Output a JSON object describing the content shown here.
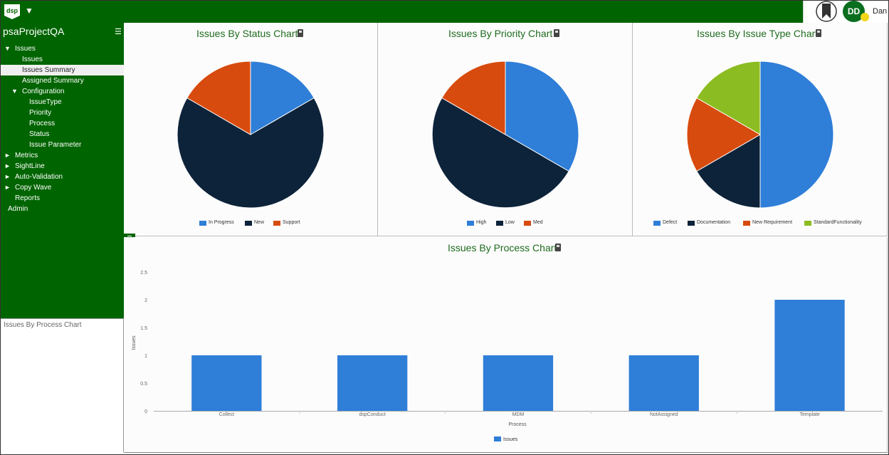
{
  "app": {
    "logo_text": "dsp",
    "user_initials": "DD",
    "user_name": "Dan"
  },
  "sidebar": {
    "project": "psaProjectQA",
    "items": [
      {
        "label": "Issues",
        "arrow": "▼"
      },
      {
        "label": "Issues"
      },
      {
        "label": "Issues Summary"
      },
      {
        "label": "Assigned Summary"
      },
      {
        "label": "Configuration",
        "arrow": "▼"
      },
      {
        "label": "IssueType"
      },
      {
        "label": "Priority"
      },
      {
        "label": "Process"
      },
      {
        "label": "Status"
      },
      {
        "label": "Issue Parameter"
      },
      {
        "label": "Metrics",
        "arrow": "►"
      },
      {
        "label": "SightLine",
        "arrow": "►"
      },
      {
        "label": "Auto-Validation",
        "arrow": "►"
      },
      {
        "label": "Copy Wave",
        "arrow": "►"
      },
      {
        "label": "Reports"
      },
      {
        "label": "Admin"
      }
    ],
    "lower_panel_text": "Issues By Process Chart"
  },
  "colors": {
    "green": "#006400",
    "blue": "#2f7ed8",
    "navy": "#0d233a",
    "orange": "#d84b0e",
    "lime": "#8bbc21"
  },
  "chart_data": [
    {
      "type": "pie",
      "title": "Issues By Status Chart",
      "labels": [
        "In Progress",
        "New",
        "Support"
      ],
      "values": [
        1,
        4,
        1
      ],
      "colors": [
        "#2f7ed8",
        "#0d233a",
        "#d84b0e"
      ]
    },
    {
      "type": "pie",
      "title": "Issues By Priority Chart",
      "labels": [
        "High",
        "Low",
        "Med"
      ],
      "values": [
        2,
        3,
        1
      ],
      "colors": [
        "#2f7ed8",
        "#0d233a",
        "#d84b0e"
      ]
    },
    {
      "type": "pie",
      "title": "Issues By Issue Type Chart",
      "labels": [
        "Defect",
        "Documentation",
        "New Requirement",
        "StandardFunctionality"
      ],
      "values": [
        3,
        1,
        1,
        1
      ],
      "colors": [
        "#2f7ed8",
        "#0d233a",
        "#d84b0e",
        "#8bbc21"
      ]
    },
    {
      "type": "bar",
      "title": "Issues By Process Chart",
      "categories": [
        "Collect",
        "dspConduct",
        "MDM",
        "NotAssigned",
        "Template"
      ],
      "series": [
        {
          "name": "Issues",
          "values": [
            1,
            1,
            1,
            1,
            2
          ]
        }
      ],
      "xlabel": "Process",
      "ylabel": "Issues",
      "ylim": [
        0,
        2.5
      ],
      "yticks": [
        "0",
        "0.5",
        "1",
        "1.5",
        "2",
        "2.5"
      ],
      "grid": false,
      "legend": "bottom"
    }
  ]
}
